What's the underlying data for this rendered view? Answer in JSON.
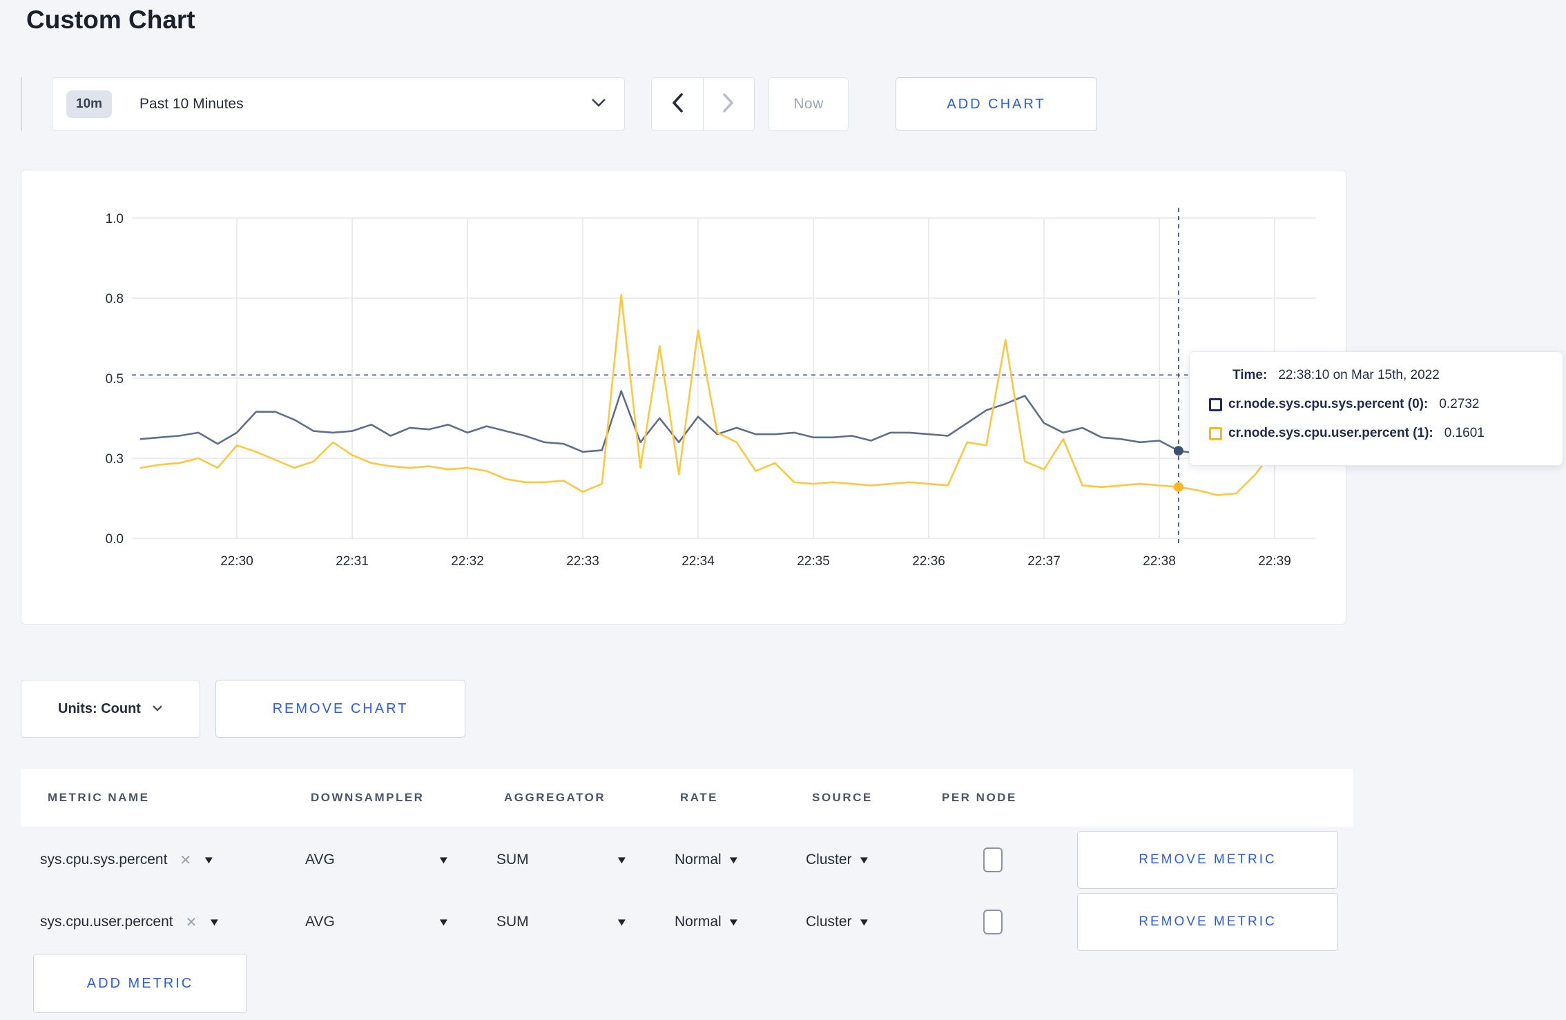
{
  "page": {
    "title": "Custom Chart"
  },
  "icons": {
    "close": "✕",
    "caret_down": "▼"
  },
  "toolbar": {
    "time_range": {
      "badge": "10m",
      "label": "Past 10 Minutes"
    },
    "now_label": "Now",
    "add_chart_label": "ADD CHART"
  },
  "chart_data": {
    "type": "line",
    "x_tick_labels": [
      "22:30",
      "22:31",
      "22:32",
      "22:33",
      "22:34",
      "22:35",
      "22:36",
      "22:37",
      "22:38",
      "22:39"
    ],
    "y_ticks": [
      {
        "v": 0.0,
        "label": "0.0"
      },
      {
        "v": 0.25,
        "label": "0.3"
      },
      {
        "v": 0.5,
        "label": "0.5"
      },
      {
        "v": 0.75,
        "label": "0.8"
      },
      {
        "v": 1.0,
        "label": "1.0"
      }
    ],
    "ylim": [
      0,
      1
    ],
    "grid": true,
    "x_start_min": 29.1667,
    "x_step_sec": 10,
    "series": [
      {
        "name": "cr.node.sys.cpu.sys.percent (0)",
        "line_color": "#5f6e8c",
        "icon_color": "#1e2c50",
        "dot_color": "#3d5070",
        "values": [
          0.31,
          0.315,
          0.32,
          0.33,
          0.295,
          0.33,
          0.395,
          0.395,
          0.37,
          0.335,
          0.33,
          0.335,
          0.355,
          0.32,
          0.345,
          0.34,
          0.355,
          0.33,
          0.35,
          0.335,
          0.32,
          0.3,
          0.295,
          0.27,
          0.275,
          0.46,
          0.3,
          0.375,
          0.3,
          0.38,
          0.325,
          0.345,
          0.325,
          0.325,
          0.33,
          0.315,
          0.315,
          0.32,
          0.305,
          0.33,
          0.33,
          0.325,
          0.32,
          0.36,
          0.4,
          0.42,
          0.445,
          0.36,
          0.33,
          0.345,
          0.315,
          0.31,
          0.3,
          0.305,
          0.2732,
          0.265,
          0.3,
          0.315,
          0.32,
          0.3,
          0.305,
          0.31
        ]
      },
      {
        "name": "cr.node.sys.cpu.user.percent (1)",
        "line_color": "#fcc842",
        "icon_color": "#fdba12",
        "dot_color": "#fcb622",
        "values": [
          0.22,
          0.23,
          0.235,
          0.25,
          0.22,
          0.29,
          0.27,
          0.245,
          0.22,
          0.24,
          0.3,
          0.26,
          0.235,
          0.225,
          0.22,
          0.225,
          0.215,
          0.22,
          0.21,
          0.185,
          0.175,
          0.175,
          0.18,
          0.145,
          0.17,
          0.76,
          0.22,
          0.6,
          0.2,
          0.65,
          0.33,
          0.3,
          0.21,
          0.235,
          0.175,
          0.17,
          0.175,
          0.17,
          0.165,
          0.17,
          0.175,
          0.17,
          0.165,
          0.3,
          0.29,
          0.62,
          0.24,
          0.215,
          0.31,
          0.165,
          0.16,
          0.165,
          0.17,
          0.165,
          0.1601,
          0.15,
          0.135,
          0.14,
          0.2,
          0.28,
          0.26,
          0.23
        ]
      }
    ],
    "crosshair": {
      "time_min": 38.1667,
      "hline_value": 0.51
    },
    "tooltip": {
      "time_label": "Time:",
      "time_value": "22:38:10 on Mar 15th, 2022",
      "rows": [
        {
          "value": "0.2732"
        },
        {
          "value": "0.1601"
        }
      ]
    }
  },
  "units_bar": {
    "units_label": "Units: Count",
    "remove_chart_label": "REMOVE CHART"
  },
  "metrics_table": {
    "headers": [
      "METRIC NAME",
      "DOWNSAMPLER",
      "AGGREGATOR",
      "RATE",
      "SOURCE",
      "PER NODE"
    ],
    "rows": [
      {
        "metric": "sys.cpu.sys.percent",
        "downsampler": "AVG",
        "aggregator": "SUM",
        "rate": "Normal",
        "source": "Cluster",
        "per_node_checked": false,
        "remove_label": "REMOVE METRIC"
      },
      {
        "metric": "sys.cpu.user.percent",
        "downsampler": "AVG",
        "aggregator": "SUM",
        "rate": "Normal",
        "source": "Cluster",
        "per_node_checked": false,
        "remove_label": "REMOVE METRIC"
      }
    ],
    "add_metric_label": "ADD METRIC"
  }
}
